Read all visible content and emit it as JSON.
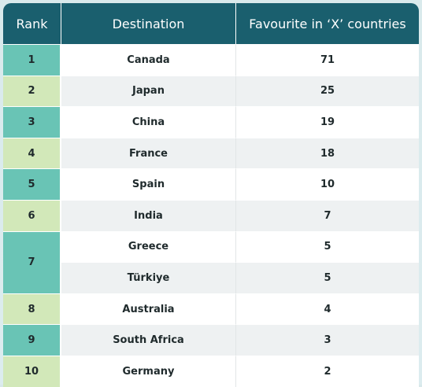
{
  "chart_data": {
    "type": "table",
    "columns": [
      "Rank",
      "Destination",
      "Favourite in ‘X’ countries"
    ],
    "rows": [
      {
        "rank": "1",
        "destination": "Canada",
        "value": "71"
      },
      {
        "rank": "2",
        "destination": "Japan",
        "value": "25"
      },
      {
        "rank": "3",
        "destination": "China",
        "value": "19"
      },
      {
        "rank": "4",
        "destination": "France",
        "value": "18"
      },
      {
        "rank": "5",
        "destination": "Spain",
        "value": "10"
      },
      {
        "rank": "6",
        "destination": "India",
        "value": "7"
      },
      {
        "rank": "7",
        "destination": "Greece",
        "value": "5"
      },
      {
        "rank": "7",
        "destination": "Türkiye",
        "value": "5"
      },
      {
        "rank": "8",
        "destination": "Australia",
        "value": "4"
      },
      {
        "rank": "9",
        "destination": "South Africa",
        "value": "3"
      },
      {
        "rank": "10",
        "destination": "Germany",
        "value": "2"
      }
    ],
    "colors": {
      "header": "#1a5f6e",
      "rank_teal": "#69c4b5",
      "rank_light": "#d2e8b9"
    }
  }
}
